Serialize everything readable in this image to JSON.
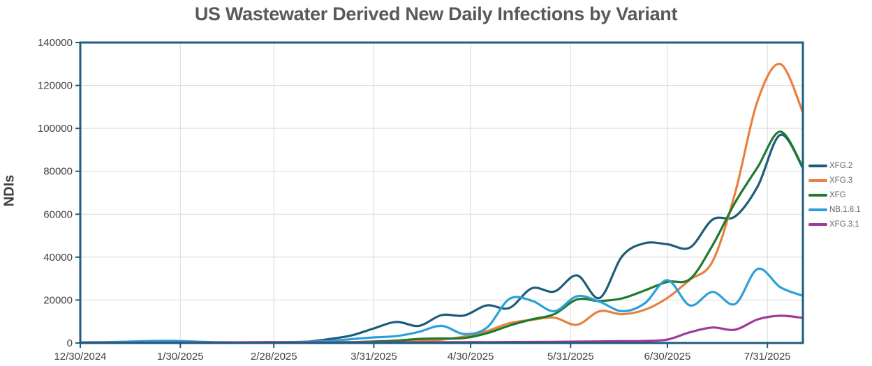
{
  "chart_data": {
    "type": "line",
    "title": "US Wastewater Derived New Daily Infections by Variant",
    "ylabel": "NDIs",
    "ylim": [
      0,
      140000
    ],
    "y_ticks": [
      0,
      20000,
      40000,
      60000,
      80000,
      100000,
      120000,
      140000
    ],
    "x_tick_labels": [
      "12/30/2024",
      "1/30/2025",
      "2/28/2025",
      "3/31/2025",
      "4/30/2025",
      "5/31/2025",
      "6/30/2025",
      "7/31/2025"
    ],
    "x_tick_days": [
      0,
      31,
      60,
      91,
      121,
      152,
      182,
      213
    ],
    "domain_days": 224,
    "grid": true,
    "legend_position": "right",
    "axis_color": "#1d5d7d",
    "grid_color": "#d9d9d9",
    "tick_label_color": "#404040",
    "title_color": "#595959",
    "legend_text_color": "#666666",
    "point_labels": [
      "12/30/2024",
      "1/6/2025",
      "1/13/2025",
      "1/20/2025",
      "1/27/2025",
      "2/3/2025",
      "2/10/2025",
      "2/17/2025",
      "2/24/2025",
      "3/3/2025",
      "3/10/2025",
      "3/17/2025",
      "3/24/2025",
      "3/31/2025",
      "4/7/2025",
      "4/14/2025",
      "4/21/2025",
      "4/28/2025",
      "5/5/2025",
      "5/12/2025",
      "5/19/2025",
      "5/26/2025",
      "6/2/2025",
      "6/9/2025",
      "6/16/2025",
      "6/23/2025",
      "6/30/2025",
      "7/7/2025",
      "7/14/2025",
      "7/21/2025",
      "7/28/2025",
      "8/4/2025",
      "8/11/2025"
    ],
    "point_days": [
      0,
      7,
      14,
      21,
      28,
      35,
      42,
      49,
      56,
      63,
      70,
      77,
      84,
      91,
      98,
      105,
      112,
      119,
      126,
      133,
      140,
      147,
      154,
      161,
      168,
      175,
      182,
      189,
      196,
      203,
      210,
      217,
      224
    ],
    "series": [
      {
        "name": "XFG.2",
        "color": "#1f5c7a",
        "values": [
          300,
          300,
          300,
          300,
          350,
          300,
          300,
          300,
          300,
          300,
          600,
          1800,
          3500,
          6800,
          9800,
          8000,
          13000,
          12800,
          17500,
          16300,
          25500,
          24000,
          31500,
          21000,
          40500,
          46500,
          46000,
          44500,
          57500,
          59000,
          73000,
          97000,
          81500
        ]
      },
      {
        "name": "XFG.3",
        "color": "#e8803f",
        "values": [
          200,
          200,
          200,
          200,
          250,
          200,
          200,
          200,
          200,
          200,
          250,
          300,
          350,
          400,
          600,
          900,
          1600,
          3000,
          5500,
          9200,
          10800,
          11800,
          8500,
          14800,
          13400,
          15500,
          21000,
          29500,
          38000,
          70000,
          113000,
          130000,
          107500
        ]
      },
      {
        "name": "XFG",
        "color": "#1e7a2c",
        "values": [
          200,
          200,
          200,
          200,
          250,
          200,
          200,
          200,
          200,
          250,
          300,
          350,
          400,
          700,
          1100,
          1900,
          2100,
          2300,
          4500,
          8100,
          11000,
          13500,
          20300,
          19600,
          20800,
          24500,
          28500,
          29800,
          45500,
          65500,
          82000,
          98500,
          81800
        ]
      },
      {
        "name": "NB.1.8.1",
        "color": "#2ba0d9",
        "values": [
          300,
          400,
          600,
          900,
          1000,
          700,
          400,
          300,
          300,
          400,
          600,
          900,
          1800,
          2600,
          3200,
          5200,
          8000,
          4200,
          7100,
          20500,
          19700,
          14800,
          21800,
          19200,
          14800,
          18500,
          29300,
          17500,
          23800,
          18200,
          34500,
          26000,
          22000
        ]
      },
      {
        "name": "XFG.3.1",
        "color": "#a03a9c",
        "values": [
          150,
          150,
          150,
          150,
          200,
          200,
          250,
          300,
          400,
          350,
          300,
          250,
          250,
          300,
          300,
          300,
          350,
          400,
          400,
          450,
          500,
          550,
          650,
          750,
          850,
          950,
          1600,
          5000,
          7200,
          6200,
          11000,
          12700,
          11700
        ]
      }
    ]
  }
}
